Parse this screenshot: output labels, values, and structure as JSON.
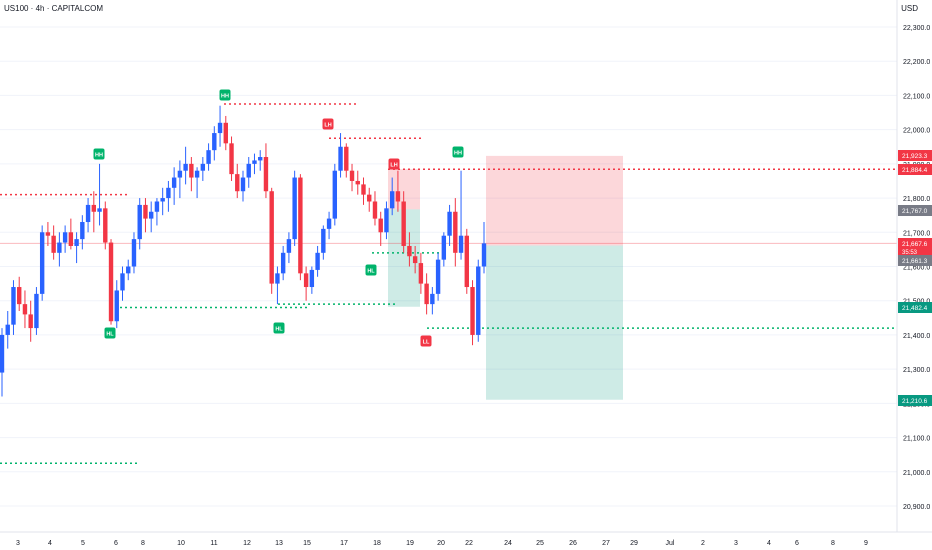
{
  "header": {
    "title": "US100 · 4h · CAPITALCOM",
    "currency": "USD"
  },
  "colors": {
    "bull": "#2962ff",
    "bear": "#f23645",
    "green": "#00b36b",
    "red": "#f23645",
    "grid": "#f0f3fa",
    "axis_text": "#131722"
  },
  "chart_data": {
    "type": "candlestick",
    "title": "US100 · 4h · CAPITALCOM",
    "y_axis": {
      "ticks": [
        22300,
        22200,
        22100,
        22000,
        21900,
        21800,
        21700,
        21600,
        21500,
        21400,
        21300,
        21200,
        21100,
        21000,
        20900
      ],
      "range": [
        20860,
        22350
      ]
    },
    "x_axis": {
      "ticks": [
        "3",
        "4",
        "5",
        "6",
        "8",
        "10",
        "11",
        "12",
        "13",
        "15",
        "17",
        "18",
        "19",
        "20",
        "22",
        "24",
        "25",
        "26",
        "27",
        "29",
        "Jul",
        "2",
        "3",
        "4",
        "6",
        "8",
        "9"
      ]
    },
    "price_labels": [
      {
        "value": "21,923.3",
        "color": "#f23645"
      },
      {
        "value": "21,884.4",
        "color": "#f23645"
      },
      {
        "value": "21,767.0",
        "color": "#787b86"
      },
      {
        "value": "21,667.6",
        "sub": "35:53",
        "color": "#f23645"
      },
      {
        "value": "21,661.3",
        "color": "#787b86"
      },
      {
        "value": "21,482.4",
        "color": "#089981"
      },
      {
        "value": "21,210.6",
        "color": "#089981"
      }
    ],
    "structure_labels": [
      {
        "text": "HH",
        "color": "green"
      },
      {
        "text": "HL",
        "color": "green"
      },
      {
        "text": "HH",
        "color": "green"
      },
      {
        "text": "HL",
        "color": "green"
      },
      {
        "text": "LH",
        "color": "red"
      },
      {
        "text": "LH",
        "color": "red"
      },
      {
        "text": "HL",
        "color": "green"
      },
      {
        "text": "HH",
        "color": "green"
      },
      {
        "text": "LL",
        "color": "red"
      }
    ],
    "candles": [
      [
        21290,
        21420,
        21220,
        21400
      ],
      [
        21400,
        21470,
        21360,
        21430
      ],
      [
        21430,
        21560,
        21400,
        21540
      ],
      [
        21540,
        21570,
        21470,
        21490
      ],
      [
        21490,
        21530,
        21420,
        21460
      ],
      [
        21460,
        21500,
        21380,
        21420
      ],
      [
        21420,
        21540,
        21400,
        21520
      ],
      [
        21520,
        21720,
        21500,
        21700
      ],
      [
        21700,
        21730,
        21660,
        21690
      ],
      [
        21690,
        21720,
        21620,
        21640
      ],
      [
        21640,
        21700,
        21600,
        21670
      ],
      [
        21670,
        21720,
        21640,
        21700
      ],
      [
        21700,
        21740,
        21650,
        21660
      ],
      [
        21660,
        21700,
        21610,
        21680
      ],
      [
        21680,
        21750,
        21650,
        21730
      ],
      [
        21730,
        21800,
        21700,
        21780
      ],
      [
        21780,
        21820,
        21700,
        21760
      ],
      [
        21760,
        21900,
        21720,
        21770
      ],
      [
        21770,
        21790,
        21650,
        21670
      ],
      [
        21670,
        21680,
        21430,
        21440
      ],
      [
        21440,
        21560,
        21420,
        21530
      ],
      [
        21530,
        21600,
        21500,
        21580
      ],
      [
        21580,
        21620,
        21560,
        21600
      ],
      [
        21600,
        21700,
        21580,
        21680
      ],
      [
        21680,
        21800,
        21650,
        21780
      ],
      [
        21780,
        21800,
        21700,
        21740
      ],
      [
        21740,
        21790,
        21700,
        21760
      ],
      [
        21760,
        21800,
        21720,
        21790
      ],
      [
        21790,
        21830,
        21750,
        21800
      ],
      [
        21800,
        21850,
        21760,
        21830
      ],
      [
        21830,
        21890,
        21780,
        21860
      ],
      [
        21860,
        21910,
        21800,
        21880
      ],
      [
        21880,
        21950,
        21840,
        21900
      ],
      [
        21900,
        21920,
        21820,
        21860
      ],
      [
        21860,
        21890,
        21800,
        21880
      ],
      [
        21880,
        21920,
        21850,
        21900
      ],
      [
        21900,
        21960,
        21880,
        21940
      ],
      [
        21940,
        22010,
        21910,
        21990
      ],
      [
        21990,
        22070,
        21950,
        22020
      ],
      [
        22020,
        22040,
        21940,
        21960
      ],
      [
        21960,
        21980,
        21850,
        21870
      ],
      [
        21870,
        21900,
        21800,
        21820
      ],
      [
        21820,
        21880,
        21790,
        21860
      ],
      [
        21860,
        21920,
        21830,
        21900
      ],
      [
        21900,
        21930,
        21870,
        21910
      ],
      [
        21910,
        21940,
        21880,
        21920
      ],
      [
        21920,
        21960,
        21800,
        21820
      ],
      [
        21820,
        21830,
        21520,
        21550
      ],
      [
        21550,
        21600,
        21490,
        21580
      ],
      [
        21580,
        21660,
        21560,
        21640
      ],
      [
        21640,
        21700,
        21610,
        21680
      ],
      [
        21680,
        21880,
        21660,
        21860
      ],
      [
        21860,
        21870,
        21560,
        21580
      ],
      [
        21580,
        21600,
        21500,
        21540
      ],
      [
        21540,
        21600,
        21520,
        21590
      ],
      [
        21590,
        21660,
        21570,
        21640
      ],
      [
        21640,
        21720,
        21620,
        21710
      ],
      [
        21710,
        21760,
        21680,
        21740
      ],
      [
        21740,
        21900,
        21720,
        21880
      ],
      [
        21880,
        21990,
        21860,
        21950
      ],
      [
        21950,
        21960,
        21860,
        21880
      ],
      [
        21880,
        21900,
        21820,
        21850
      ],
      [
        21850,
        21880,
        21810,
        21840
      ],
      [
        21840,
        21860,
        21780,
        21810
      ],
      [
        21810,
        21830,
        21760,
        21790
      ],
      [
        21790,
        21820,
        21720,
        21740
      ],
      [
        21740,
        21760,
        21660,
        21700
      ],
      [
        21700,
        21790,
        21680,
        21770
      ],
      [
        21770,
        21860,
        21750,
        21820
      ],
      [
        21820,
        21880,
        21760,
        21790
      ],
      [
        21790,
        21820,
        21640,
        21660
      ],
      [
        21660,
        21700,
        21600,
        21630
      ],
      [
        21630,
        21660,
        21580,
        21610
      ],
      [
        21610,
        21640,
        21520,
        21550
      ],
      [
        21550,
        21580,
        21460,
        21490
      ],
      [
        21490,
        21540,
        21460,
        21520
      ],
      [
        21520,
        21640,
        21500,
        21620
      ],
      [
        21620,
        21700,
        21600,
        21690
      ],
      [
        21690,
        21780,
        21660,
        21760
      ],
      [
        21760,
        21800,
        21600,
        21640
      ],
      [
        21640,
        21880,
        21620,
        21690
      ],
      [
        21690,
        21710,
        21520,
        21540
      ],
      [
        21540,
        21560,
        21370,
        21400
      ],
      [
        21400,
        21620,
        21380,
        21600
      ],
      [
        21600,
        21730,
        21580,
        21667.6
      ]
    ],
    "levels": [
      {
        "price": 21810,
        "style": "dotted",
        "color": "red"
      },
      {
        "price": 22075,
        "style": "dotted",
        "color": "red"
      },
      {
        "price": 21975,
        "style": "dotted",
        "color": "red"
      },
      {
        "price": 21884.4,
        "style": "dotted",
        "color": "red"
      },
      {
        "price": 21480,
        "style": "dotted",
        "color": "green"
      },
      {
        "price": 21490,
        "style": "dotted",
        "color": "green"
      },
      {
        "price": 21640,
        "style": "dotted",
        "color": "green"
      },
      {
        "price": 21420,
        "style": "dotted",
        "color": "green"
      },
      {
        "price": 21025,
        "style": "dotted",
        "color": "green"
      }
    ],
    "positions": [
      {
        "entry": 21661.3,
        "stop": 21923.3,
        "target": 21210.6,
        "side": "short"
      },
      {
        "entry": 21767.0,
        "stop": 21884.4,
        "target": 21482.4,
        "side": "short"
      }
    ]
  }
}
